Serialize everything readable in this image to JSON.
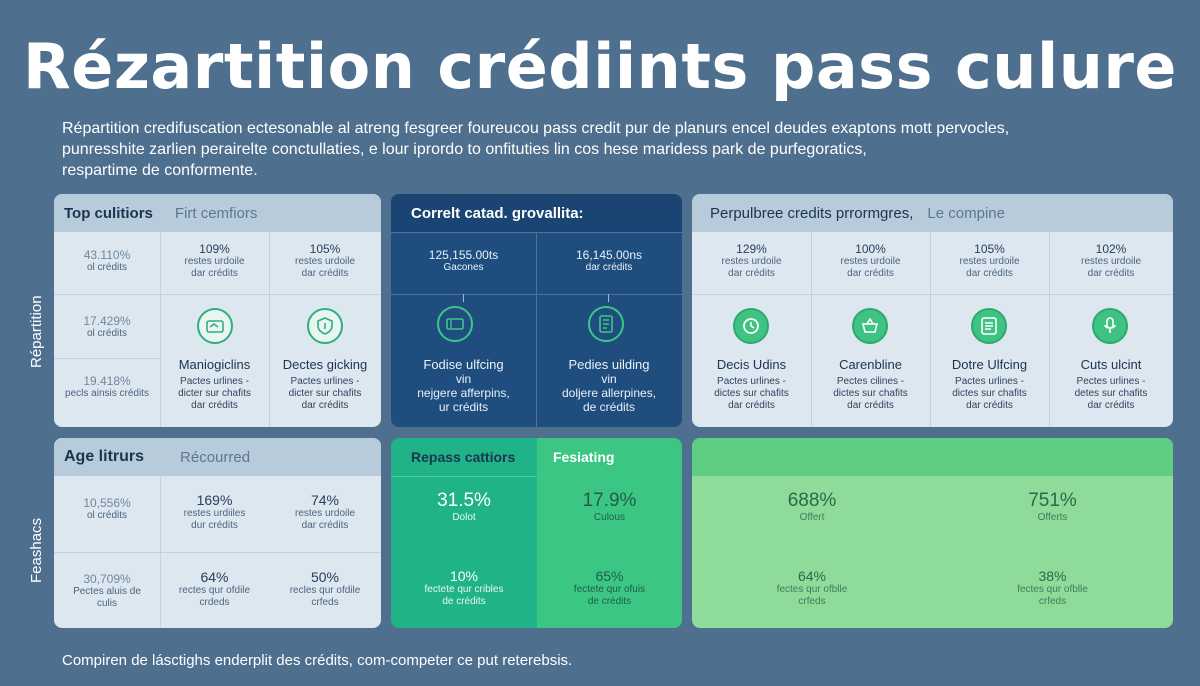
{
  "title": "Rézartition crédiints pass culure",
  "intro": [
    "Répartition credifuscation ectesonable al atreng fesgreer foureucou pass credit pur de planurs encel deudes exaptons mott pervocles,",
    "punresshite zarlien perairelte conctullaties, e lour iprordo to onfituties lin cos hese maridess park de purfegoratics,",
    "respartime de conformente."
  ],
  "side_labels": [
    "Répartition",
    "Feashacs"
  ],
  "top_left": {
    "header": [
      "Top culitiors",
      "Firt cemfiors"
    ],
    "left_col": [
      {
        "pct": "43.110%",
        "sub": "ol crédits"
      },
      {
        "pct": "17.429%",
        "sub": "ol crédits"
      },
      {
        "pct": "19.418%",
        "sub": "pecls ainsis crédits"
      }
    ],
    "cols": [
      {
        "pct": "109%",
        "sub": [
          "restes urdoile",
          "dar crédits"
        ],
        "name": "Maniogiclins",
        "desc": [
          "Pactes urlines -",
          "dicter sur chafits",
          "dar crédits"
        ],
        "icon": "wallet-icon"
      },
      {
        "pct": "105%",
        "sub": [
          "restes urdoile",
          "dar crédits"
        ],
        "name": "Dectes gicking",
        "desc": [
          "Pactes urlines -",
          "dicter sur chafits",
          "dar crédits"
        ],
        "icon": "shield-icon"
      }
    ]
  },
  "top_mid": {
    "header": "Correlt catad. grovallita:",
    "cols": [
      {
        "value": "125,155.00ts",
        "sub": "Gacones",
        "name": "Fodise ulfcing",
        "desc": [
          "vin",
          "nejgere afferpins,",
          "ur crédits"
        ],
        "icon": "ticket-icon"
      },
      {
        "value": "16,145.00ns",
        "sub": "dar crédits",
        "name": "Pedies uilding",
        "desc": [
          "vin",
          "doljere allerpines,",
          "de crédits"
        ],
        "icon": "book-icon"
      }
    ]
  },
  "top_right": {
    "header": [
      "Perpulbree credits prrormgres,",
      "Le compine"
    ],
    "cols": [
      {
        "pct": "129%",
        "sub": [
          "restes urdoile",
          "dar crédits"
        ],
        "name": "Decis Udins",
        "desc": [
          "Pactes urlines -",
          "dictes sur chafits",
          "dar crédits"
        ],
        "icon": "clock-icon"
      },
      {
        "pct": "100%",
        "sub": [
          "restes urdoile",
          "dar crédits"
        ],
        "name": "Carenbline",
        "desc": [
          "Pectes cilines -",
          "dictes sur chafits",
          "dar crédits"
        ],
        "icon": "basket-icon"
      },
      {
        "pct": "105%",
        "sub": [
          "restes urdoile",
          "dar crédits"
        ],
        "name": "Dotre Ulfcing",
        "desc": [
          "Pactes urlines -",
          "dictes sur chafits",
          "dar crédits"
        ],
        "icon": "list-icon"
      },
      {
        "pct": "102%",
        "sub": [
          "restes urdoile",
          "dar crédits"
        ],
        "name": "Cuts ulcint",
        "desc": [
          "Pectes urlines -",
          "detes sur chafits",
          "dar crédits"
        ],
        "icon": "mic-icon"
      }
    ]
  },
  "bottom_left": {
    "header": [
      "Age litrurs",
      "Récourred"
    ],
    "left_col": [
      {
        "pct": "10,556%",
        "sub": "ol crédits"
      },
      {
        "pct": "30,709%",
        "sub": "Pectes aluis de culis"
      }
    ],
    "rows": [
      [
        {
          "pct": "169%",
          "sub": [
            "restes urdiiles",
            "dur crédits"
          ]
        },
        {
          "pct": "74%",
          "sub": [
            "restes urdoile",
            "dar crédits"
          ]
        }
      ],
      [
        {
          "pct": "64%",
          "sub": [
            "rectes qur ofdile",
            "crdeds"
          ]
        },
        {
          "pct": "50%",
          "sub": [
            "recles qur ofdile",
            "crfeds"
          ]
        }
      ]
    ]
  },
  "bottom_mid": {
    "header": [
      "Repass cattiors",
      "Fesiating"
    ],
    "rows": [
      [
        {
          "pct": "31.5%",
          "sub": [
            "Dolot"
          ]
        },
        {
          "pct": "17.9%",
          "sub": [
            "Culous"
          ]
        }
      ],
      [
        {
          "pct": "10%",
          "sub": [
            "fectete qur cribles",
            "de crédits"
          ]
        },
        {
          "pct": "65%",
          "sub": [
            "fectete qur ofuis",
            "de crédits"
          ]
        }
      ]
    ]
  },
  "bottom_right": {
    "rows": [
      [
        {
          "pct": "688%",
          "sub": [
            "Offert"
          ]
        },
        {
          "pct": "751%",
          "sub": [
            "Offerts"
          ]
        }
      ],
      [
        {
          "pct": "64%",
          "sub": [
            "fectes qur ofblle",
            "crfeds"
          ]
        },
        {
          "pct": "38%",
          "sub": [
            "fectes qur ofblle",
            "crfeds"
          ]
        }
      ]
    ]
  },
  "footer": "Compiren de lásctighs enderplit des crédits, com-competer ce put reterebsis."
}
